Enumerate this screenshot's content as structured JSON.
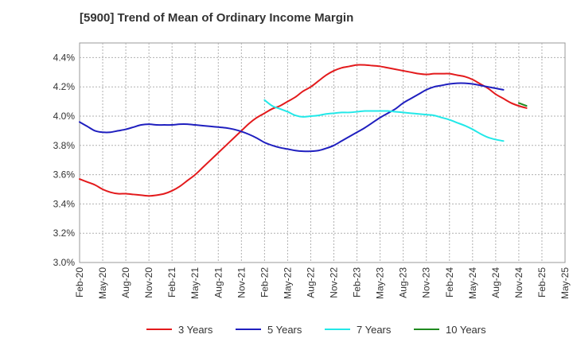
{
  "chart_data": {
    "type": "line",
    "title": "[5900]  Trend of Mean of Ordinary Income Margin",
    "xlabel": "",
    "ylabel": "",
    "x_ticks": [
      "Feb-20",
      "May-20",
      "Aug-20",
      "Nov-20",
      "Feb-21",
      "May-21",
      "Aug-21",
      "Nov-21",
      "Feb-22",
      "May-22",
      "Aug-22",
      "Nov-22",
      "Feb-23",
      "May-23",
      "Aug-23",
      "Nov-23",
      "Feb-24",
      "May-24",
      "Aug-24",
      "Nov-24",
      "Feb-25",
      "May-25"
    ],
    "y_ticks": [
      "3.0%",
      "3.2%",
      "3.4%",
      "3.6%",
      "3.8%",
      "4.0%",
      "4.2%",
      "4.4%"
    ],
    "ylim": [
      3.0,
      4.5
    ],
    "grid": true,
    "legend_position": "bottom",
    "series": [
      {
        "name": "3 Years",
        "color": "#e31a1c",
        "points": [
          [
            "Feb-20",
            3.57
          ],
          [
            "Mar-20",
            3.55
          ],
          [
            "Apr-20",
            3.53
          ],
          [
            "May-20",
            3.5
          ],
          [
            "Jun-20",
            3.48
          ],
          [
            "Jul-20",
            3.47
          ],
          [
            "Aug-20",
            3.47
          ],
          [
            "Sep-20",
            3.465
          ],
          [
            "Oct-20",
            3.46
          ],
          [
            "Nov-20",
            3.455
          ],
          [
            "Dec-20",
            3.46
          ],
          [
            "Jan-21",
            3.47
          ],
          [
            "Feb-21",
            3.49
          ],
          [
            "Mar-21",
            3.52
          ],
          [
            "Apr-21",
            3.56
          ],
          [
            "May-21",
            3.6
          ],
          [
            "Jun-21",
            3.65
          ],
          [
            "Jul-21",
            3.7
          ],
          [
            "Aug-21",
            3.75
          ],
          [
            "Sep-21",
            3.8
          ],
          [
            "Oct-21",
            3.85
          ],
          [
            "Nov-21",
            3.9
          ],
          [
            "Dec-21",
            3.95
          ],
          [
            "Jan-22",
            3.99
          ],
          [
            "Feb-22",
            4.02
          ],
          [
            "Mar-22",
            4.05
          ],
          [
            "Apr-22",
            4.07
          ],
          [
            "May-22",
            4.1
          ],
          [
            "Jun-22",
            4.13
          ],
          [
            "Jul-22",
            4.17
          ],
          [
            "Aug-22",
            4.2
          ],
          [
            "Sep-22",
            4.24
          ],
          [
            "Oct-22",
            4.28
          ],
          [
            "Nov-22",
            4.31
          ],
          [
            "Dec-22",
            4.33
          ],
          [
            "Jan-23",
            4.34
          ],
          [
            "Feb-23",
            4.35
          ],
          [
            "Mar-23",
            4.35
          ],
          [
            "Apr-23",
            4.345
          ],
          [
            "May-23",
            4.34
          ],
          [
            "Jun-23",
            4.33
          ],
          [
            "Jul-23",
            4.32
          ],
          [
            "Aug-23",
            4.31
          ],
          [
            "Sep-23",
            4.3
          ],
          [
            "Oct-23",
            4.29
          ],
          [
            "Nov-23",
            4.285
          ],
          [
            "Dec-23",
            4.29
          ],
          [
            "Jan-24",
            4.29
          ],
          [
            "Feb-24",
            4.29
          ],
          [
            "Mar-24",
            4.28
          ],
          [
            "Apr-24",
            4.27
          ],
          [
            "May-24",
            4.25
          ],
          [
            "Jun-24",
            4.22
          ],
          [
            "Jul-24",
            4.19
          ],
          [
            "Aug-24",
            4.15
          ],
          [
            "Sep-24",
            4.12
          ],
          [
            "Oct-24",
            4.09
          ],
          [
            "Nov-24",
            4.07
          ],
          [
            "Dec-24",
            4.055
          ]
        ]
      },
      {
        "name": "5 Years",
        "color": "#1f1fbf",
        "points": [
          [
            "Feb-20",
            3.96
          ],
          [
            "Mar-20",
            3.93
          ],
          [
            "Apr-20",
            3.9
          ],
          [
            "May-20",
            3.89
          ],
          [
            "Jun-20",
            3.89
          ],
          [
            "Jul-20",
            3.9
          ],
          [
            "Aug-20",
            3.91
          ],
          [
            "Sep-20",
            3.925
          ],
          [
            "Oct-20",
            3.94
          ],
          [
            "Nov-20",
            3.945
          ],
          [
            "Dec-20",
            3.94
          ],
          [
            "Jan-21",
            3.94
          ],
          [
            "Feb-21",
            3.94
          ],
          [
            "Mar-21",
            3.945
          ],
          [
            "Apr-21",
            3.945
          ],
          [
            "May-21",
            3.94
          ],
          [
            "Jun-21",
            3.935
          ],
          [
            "Jul-21",
            3.93
          ],
          [
            "Aug-21",
            3.925
          ],
          [
            "Sep-21",
            3.92
          ],
          [
            "Oct-21",
            3.91
          ],
          [
            "Nov-21",
            3.895
          ],
          [
            "Dec-21",
            3.875
          ],
          [
            "Jan-22",
            3.85
          ],
          [
            "Feb-22",
            3.82
          ],
          [
            "Mar-22",
            3.8
          ],
          [
            "Apr-22",
            3.785
          ],
          [
            "May-22",
            3.775
          ],
          [
            "Jun-22",
            3.765
          ],
          [
            "Jul-22",
            3.76
          ],
          [
            "Aug-22",
            3.76
          ],
          [
            "Sep-22",
            3.765
          ],
          [
            "Oct-22",
            3.78
          ],
          [
            "Nov-22",
            3.8
          ],
          [
            "Dec-22",
            3.83
          ],
          [
            "Jan-23",
            3.86
          ],
          [
            "Feb-23",
            3.89
          ],
          [
            "Mar-23",
            3.92
          ],
          [
            "Apr-23",
            3.955
          ],
          [
            "May-23",
            3.99
          ],
          [
            "Jun-23",
            4.02
          ],
          [
            "Jul-23",
            4.05
          ],
          [
            "Aug-23",
            4.09
          ],
          [
            "Sep-23",
            4.12
          ],
          [
            "Oct-23",
            4.15
          ],
          [
            "Nov-23",
            4.18
          ],
          [
            "Dec-23",
            4.2
          ],
          [
            "Jan-24",
            4.21
          ],
          [
            "Feb-24",
            4.22
          ],
          [
            "Mar-24",
            4.225
          ],
          [
            "Apr-24",
            4.225
          ],
          [
            "May-24",
            4.22
          ],
          [
            "Jun-24",
            4.21
          ],
          [
            "Jul-24",
            4.2
          ],
          [
            "Aug-24",
            4.19
          ],
          [
            "Sep-24",
            4.18
          ]
        ]
      },
      {
        "name": "7 Years",
        "color": "#22e8e8",
        "points": [
          [
            "Feb-22",
            4.11
          ],
          [
            "Mar-22",
            4.07
          ],
          [
            "Apr-22",
            4.05
          ],
          [
            "May-22",
            4.03
          ],
          [
            "Jun-22",
            4.005
          ],
          [
            "Jul-22",
            3.995
          ],
          [
            "Aug-22",
            4.0
          ],
          [
            "Sep-22",
            4.005
          ],
          [
            "Oct-22",
            4.015
          ],
          [
            "Nov-22",
            4.02
          ],
          [
            "Dec-22",
            4.025
          ],
          [
            "Jan-23",
            4.025
          ],
          [
            "Feb-23",
            4.03
          ],
          [
            "Mar-23",
            4.035
          ],
          [
            "Apr-23",
            4.035
          ],
          [
            "May-23",
            4.035
          ],
          [
            "Jun-23",
            4.035
          ],
          [
            "Jul-23",
            4.03
          ],
          [
            "Aug-23",
            4.025
          ],
          [
            "Sep-23",
            4.02
          ],
          [
            "Oct-23",
            4.015
          ],
          [
            "Nov-23",
            4.01
          ],
          [
            "Dec-23",
            4.005
          ],
          [
            "Jan-24",
            3.99
          ],
          [
            "Feb-24",
            3.975
          ],
          [
            "Mar-24",
            3.955
          ],
          [
            "Apr-24",
            3.935
          ],
          [
            "May-24",
            3.91
          ],
          [
            "Jun-24",
            3.88
          ],
          [
            "Jul-24",
            3.855
          ],
          [
            "Aug-24",
            3.84
          ],
          [
            "Sep-24",
            3.83
          ]
        ]
      },
      {
        "name": "10 Years",
        "color": "#1f8a1f",
        "points": [
          [
            "Nov-24",
            4.09
          ],
          [
            "Dec-24",
            4.07
          ]
        ]
      }
    ]
  }
}
